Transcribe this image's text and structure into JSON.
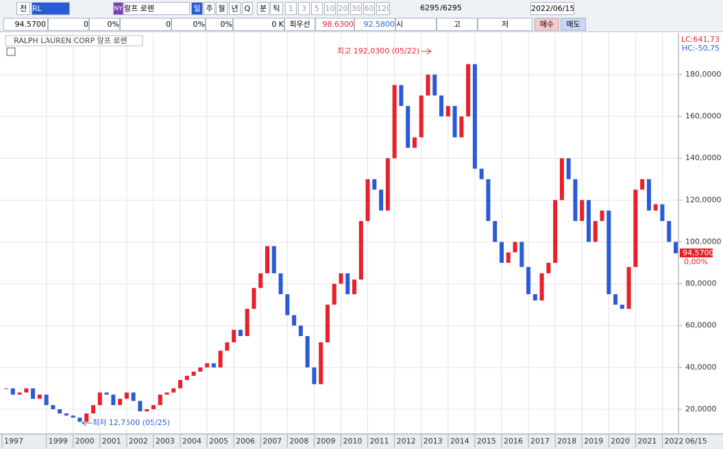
{
  "toolbar": {
    "row1": [
      "전",
      "RL",
      "NY",
      "랄프 로렌",
      "일",
      "주",
      "월",
      "년",
      "Q",
      "분",
      "틱",
      "1",
      "3",
      "5",
      "10",
      "20",
      "30",
      "60",
      "120",
      "6295",
      "/6295",
      "2022/06/15"
    ],
    "row2": [
      "94.5700",
      "0",
      "0%",
      "0",
      "0%",
      "0%",
      "0 K",
      "최우선",
      "98.6300",
      "92.5800",
      "시",
      "고",
      "저",
      "매수",
      "매도"
    ]
  },
  "chart_data": {
    "type": "candle",
    "title": "RALPH LAUREN CORP  랄프 로렌",
    "categories": [
      "1997",
      null,
      null,
      null,
      null,
      null,
      "1999",
      null,
      null,
      null,
      "2000",
      null,
      null,
      null,
      "2001",
      null,
      null,
      null,
      "2002",
      null,
      null,
      null,
      "2003",
      null,
      null,
      null,
      "2004",
      null,
      null,
      null,
      "2005",
      null,
      null,
      null,
      "2006",
      null,
      null,
      null,
      "2007",
      null,
      null,
      null,
      "2008",
      null,
      null,
      null,
      "2009",
      null,
      null,
      null,
      "2010",
      null,
      null,
      null,
      "2011",
      null,
      null,
      null,
      "2012",
      null,
      null,
      null,
      "2013",
      null,
      null,
      null,
      "2014",
      null,
      null,
      null,
      "2015",
      null,
      null,
      null,
      "2016",
      null,
      null,
      null,
      "2017",
      null,
      null,
      null,
      "2018",
      null,
      null,
      null,
      "2019",
      null,
      null,
      null,
      "2020",
      null,
      null,
      null,
      "2021",
      null,
      null,
      null,
      "2022",
      null,
      null
    ],
    "values": [
      30,
      27,
      28,
      30,
      25,
      27,
      22,
      20,
      18,
      17,
      16,
      14,
      18,
      22,
      28,
      27,
      22,
      25,
      28,
      24,
      19,
      20,
      22,
      27,
      28,
      30,
      34,
      36,
      38,
      40,
      42,
      40,
      48,
      52,
      58,
      55,
      68,
      78,
      85,
      98,
      85,
      75,
      65,
      60,
      55,
      40,
      32,
      52,
      70,
      80,
      85,
      75,
      82,
      110,
      130,
      125,
      115,
      140,
      175,
      165,
      145,
      150,
      170,
      180,
      170,
      160,
      165,
      150,
      160,
      185,
      135,
      130,
      110,
      100,
      90,
      95,
      100,
      88,
      75,
      72,
      85,
      90,
      120,
      140,
      130,
      110,
      120,
      100,
      110,
      115,
      75,
      70,
      68,
      88,
      125,
      130,
      115,
      118,
      110,
      100,
      94.57
    ],
    "up_color": "#e8202a",
    "down_color": "#2a5bd7",
    "ylim": [
      8.2,
      199.3
    ],
    "yticks": [
      {
        "value": 20,
        "label": "20,0000"
      },
      {
        "value": 40,
        "label": "40,0000"
      },
      {
        "value": 60,
        "label": "60,0000"
      },
      {
        "value": 80,
        "label": "80,0000"
      },
      {
        "value": 100,
        "label": "100,0000"
      },
      {
        "value": 120,
        "label": "120,0000"
      },
      {
        "value": 140,
        "label": "140,0000"
      },
      {
        "value": 160,
        "label": "160,0000"
      },
      {
        "value": 180,
        "label": "180,0000"
      }
    ],
    "grid": true,
    "x_end_label": "06/15",
    "last_label": "94,5700",
    "change_label": "0,00%",
    "lc": "LC:641,73",
    "hc": "HC:-50,75",
    "annotations": [
      "최고 192,0300 (05/22)",
      "최저 12,7500 (05/25)"
    ]
  }
}
